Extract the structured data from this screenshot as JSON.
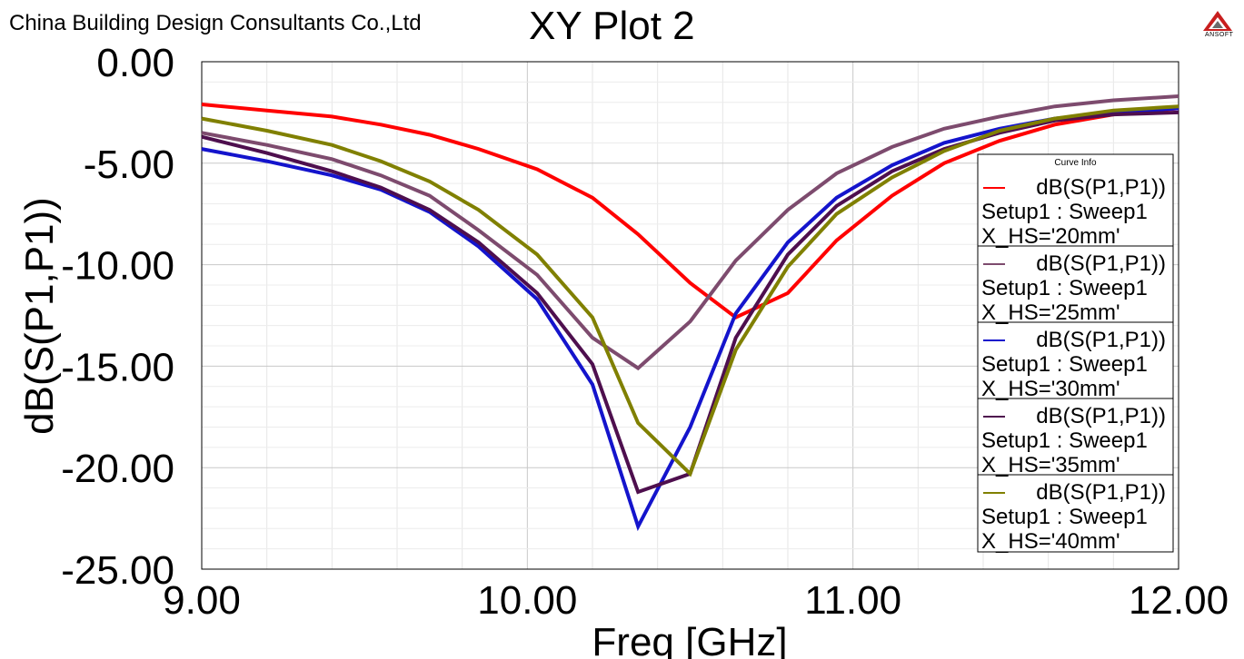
{
  "header": {
    "company": "China Building Design Consultants Co.,Ltd",
    "title": "XY Plot 2",
    "logo_text": "ANSOFT",
    "logo_icon": "ansoft-logo-icon"
  },
  "legend": {
    "header": "Curve Info"
  },
  "chart_data": {
    "type": "line",
    "title": "XY Plot 2",
    "xlabel": "Freq [GHz]",
    "ylabel": "dB(S(P1,P1))",
    "xlim": [
      9.0,
      12.0
    ],
    "ylim": [
      -25.0,
      0.0
    ],
    "x_ticks": [
      9.0,
      10.0,
      11.0,
      12.0
    ],
    "x_tick_labels": [
      "9.00",
      "10.00",
      "11.00",
      "12.00"
    ],
    "y_ticks": [
      0.0,
      -5.0,
      -10.0,
      -15.0,
      -20.0,
      -25.0
    ],
    "y_tick_labels": [
      "0.00",
      "-5.00",
      "-10.00",
      "-15.00",
      "-20.00",
      "-25.00"
    ],
    "grid": true,
    "legend_position": "right",
    "x": [
      9.0,
      9.2,
      9.4,
      9.55,
      9.7,
      9.85,
      10.03,
      10.2,
      10.34,
      10.5,
      10.64,
      10.8,
      10.95,
      11.12,
      11.28,
      11.45,
      11.62,
      11.8,
      12.0
    ],
    "series": [
      {
        "name": "dB(S(P1,P1))",
        "line2": "Setup1 : Sweep1",
        "line3": "X_HS='20mm'",
        "color": "#ff0000",
        "values": [
          -2.1,
          -2.4,
          -2.7,
          -3.1,
          -3.6,
          -4.3,
          -5.3,
          -6.7,
          -8.5,
          -10.9,
          -12.6,
          -11.4,
          -8.8,
          -6.6,
          -5.0,
          -3.9,
          -3.1,
          -2.6,
          -2.3
        ]
      },
      {
        "name": "dB(S(P1,P1))",
        "line2": "Setup1 : Sweep1",
        "line3": "X_HS='25mm'",
        "color": "#7d4b6e",
        "values": [
          -3.5,
          -4.1,
          -4.8,
          -5.6,
          -6.6,
          -8.3,
          -10.5,
          -13.6,
          -15.1,
          -12.8,
          -9.8,
          -7.3,
          -5.5,
          -4.2,
          -3.3,
          -2.7,
          -2.2,
          -1.9,
          -1.7
        ]
      },
      {
        "name": "dB(S(P1,P1))",
        "line2": "Setup1 : Sweep1",
        "line3": "X_HS='30mm'",
        "color": "#1414cc",
        "values": [
          -4.3,
          -4.9,
          -5.6,
          -6.3,
          -7.4,
          -9.1,
          -11.7,
          -15.9,
          -22.9,
          -18.0,
          -12.4,
          -8.9,
          -6.7,
          -5.1,
          -4.0,
          -3.3,
          -2.8,
          -2.5,
          -2.3
        ]
      },
      {
        "name": "dB(S(P1,P1))",
        "line2": "Setup1 : Sweep1",
        "line3": "X_HS='35mm'",
        "color": "#4e0f4e",
        "values": [
          -3.7,
          -4.5,
          -5.4,
          -6.2,
          -7.3,
          -8.9,
          -11.4,
          -14.9,
          -21.2,
          -20.3,
          -13.6,
          -9.5,
          -7.1,
          -5.4,
          -4.3,
          -3.5,
          -2.9,
          -2.6,
          -2.5
        ]
      },
      {
        "name": "dB(S(P1,P1))",
        "line2": "Setup1 : Sweep1",
        "line3": "X_HS='40mm'",
        "color": "#808000",
        "values": [
          -2.8,
          -3.4,
          -4.1,
          -4.9,
          -5.9,
          -7.3,
          -9.5,
          -12.6,
          -17.8,
          -20.3,
          -14.2,
          -10.1,
          -7.5,
          -5.7,
          -4.4,
          -3.4,
          -2.8,
          -2.4,
          -2.2
        ]
      }
    ]
  }
}
